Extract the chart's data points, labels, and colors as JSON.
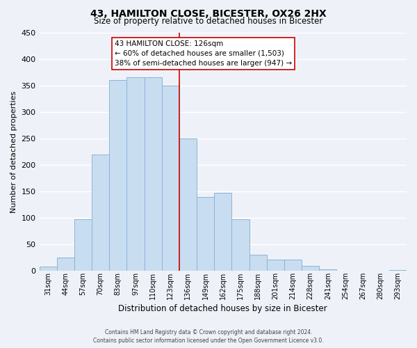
{
  "title": "43, HAMILTON CLOSE, BICESTER, OX26 2HX",
  "subtitle": "Size of property relative to detached houses in Bicester",
  "xlabel": "Distribution of detached houses by size in Bicester",
  "ylabel": "Number of detached properties",
  "bar_labels": [
    "31sqm",
    "44sqm",
    "57sqm",
    "70sqm",
    "83sqm",
    "97sqm",
    "110sqm",
    "123sqm",
    "136sqm",
    "149sqm",
    "162sqm",
    "175sqm",
    "188sqm",
    "201sqm",
    "214sqm",
    "228sqm",
    "241sqm",
    "254sqm",
    "267sqm",
    "280sqm",
    "293sqm"
  ],
  "bar_values": [
    8,
    25,
    98,
    220,
    360,
    365,
    365,
    350,
    250,
    140,
    148,
    97,
    30,
    22,
    22,
    10,
    3,
    1,
    1,
    0,
    2
  ],
  "bar_color": "#c9ddf0",
  "bar_edge_color": "#8ab4d8",
  "vline_index": 7,
  "vline_color": "#cc0000",
  "ylim": [
    0,
    450
  ],
  "yticks": [
    0,
    50,
    100,
    150,
    200,
    250,
    300,
    350,
    400,
    450
  ],
  "annotation_title": "43 HAMILTON CLOSE: 126sqm",
  "annotation_line1": "← 60% of detached houses are smaller (1,503)",
  "annotation_line2": "38% of semi-detached houses are larger (947) →",
  "annotation_box_color": "#ffffff",
  "annotation_box_edge": "#cc0000",
  "footer_line1": "Contains HM Land Registry data © Crown copyright and database right 2024.",
  "footer_line2": "Contains public sector information licensed under the Open Government Licence v3.0.",
  "background_color": "#eef2f8",
  "grid_color": "#ffffff"
}
